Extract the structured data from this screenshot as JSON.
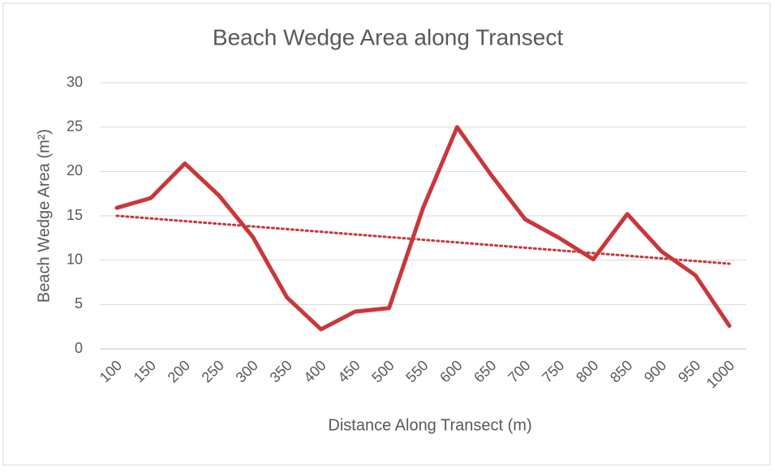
{
  "chart_data": {
    "type": "line",
    "title": "Beach Wedge Area along Transect",
    "x_label": "Distance Along Transect (m)",
    "y_label": "Beach Wedge Area (m²)",
    "categories": [
      "100",
      "150",
      "200",
      "250",
      "300",
      "350",
      "400",
      "450",
      "500",
      "550",
      "600",
      "650",
      "700",
      "750",
      "800",
      "850",
      "900",
      "950",
      "1000"
    ],
    "series": [
      {
        "color": "#c9373a",
        "values": [
          15.9,
          17.0,
          20.9,
          17.3,
          12.6,
          5.8,
          2.2,
          4.2,
          4.6,
          15.9,
          25.0,
          19.6,
          14.6,
          12.5,
          10.1,
          15.2,
          11.0,
          8.3,
          2.6
        ]
      }
    ],
    "trendline": {
      "values": [
        15.0,
        9.6
      ],
      "color": "#c9373a",
      "style": "dotted"
    },
    "ylim": [
      0,
      30
    ],
    "yticks": [
      0,
      5,
      10,
      15,
      20,
      25,
      30
    ],
    "grid": true
  }
}
